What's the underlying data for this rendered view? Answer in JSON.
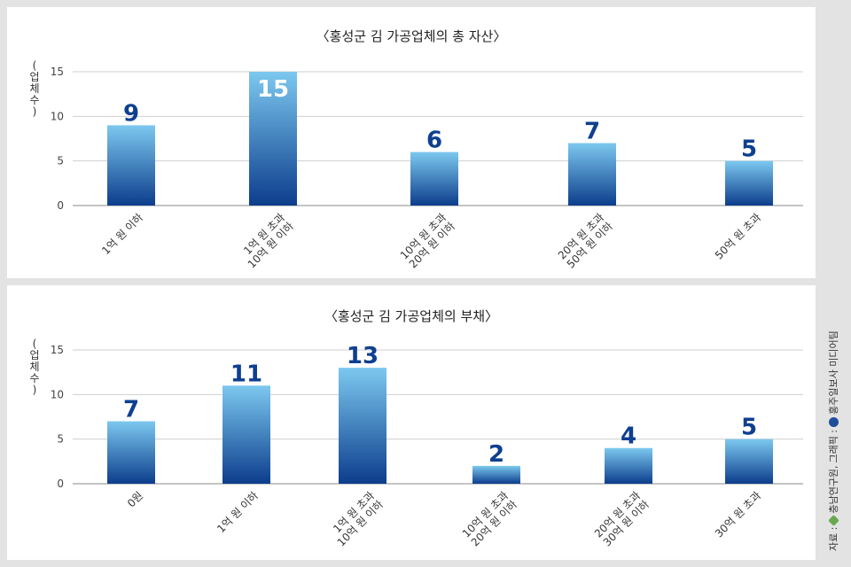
{
  "chart_data": [
    {
      "type": "bar",
      "title": "〈홍성군 김 가공업체의 총 자산〉",
      "ylabel": "(업체수)",
      "ylim": [
        0,
        15
      ],
      "yticks": [
        0,
        5,
        10,
        15
      ],
      "grid": true,
      "categories": [
        "1억 원 이하",
        "1억 원 초과\n10억 원 이하",
        "10억 원 초과\n20억 원 이하",
        "20억 원 초과\n50억 원 이하",
        "50억 원 초과"
      ],
      "values": [
        9,
        15,
        6,
        7,
        5
      ]
    },
    {
      "type": "bar",
      "title": "〈홍성군 김 가공업체의 부채〉",
      "ylabel": "(업체수)",
      "ylim": [
        0,
        15
      ],
      "yticks": [
        0,
        5,
        10,
        15
      ],
      "grid": true,
      "categories": [
        "0원",
        "1억 원 이하",
        "1억 원 초과\n10억 원 이하",
        "10억 원 초과\n20억 원 이하",
        "20억 원 초과\n30억 원 이하",
        "30억 원 초과"
      ],
      "values": [
        7,
        11,
        13,
        2,
        4,
        5
      ]
    }
  ],
  "source": {
    "prefix": "자료 :",
    "research": "충남연구원,",
    "graphic": "그래픽 :",
    "media": "홍주일보사 미디어팀"
  },
  "colors": {
    "bar_top": "#7cc8ef",
    "bar_bottom": "#0c3d8c",
    "value_label": "#0f3f8f",
    "grid": "#cfcfcf",
    "panel_bg": "#ffffff",
    "page_bg": "#e3e3e3"
  }
}
